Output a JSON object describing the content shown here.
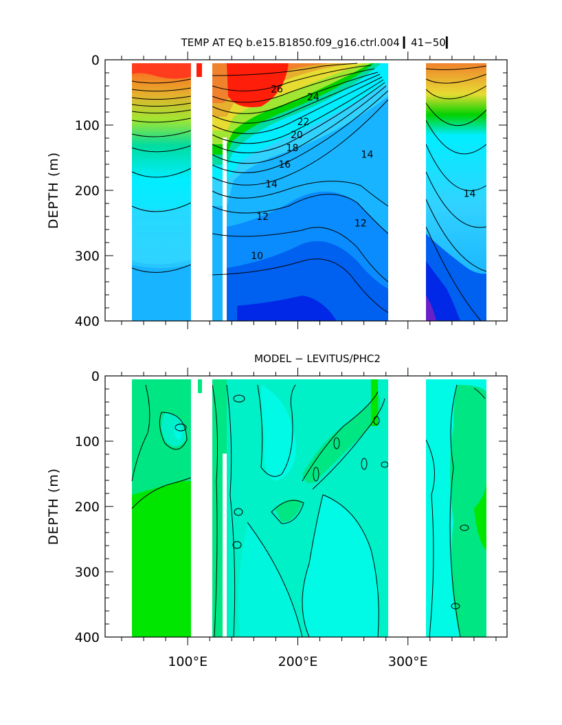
{
  "chart_data": [
    {
      "type": "contour",
      "title": "TEMP AT EQ b.e15.B1850.f09_g16.ctrl.004 ▎41−50▎",
      "xlabel": "",
      "ylabel": "DEPTH (m)",
      "xlim": [
        25,
        390
      ],
      "ylim": [
        400,
        0
      ],
      "x_ticks": [
        100,
        200,
        300
      ],
      "x_tick_labels": [
        "",
        "",
        ""
      ],
      "y_ticks": [
        0,
        100,
        200,
        300,
        400
      ],
      "y_tick_labels": [
        "0",
        "100",
        "200",
        "300",
        "400"
      ],
      "land_gaps_lon": [
        [
          97,
          117
        ],
        [
          126,
          131
        ],
        [
          277,
          314
        ]
      ],
      "data_extent_lon": [
        42,
        369
      ],
      "contour_levels": [
        5,
        6,
        7,
        8,
        9,
        10,
        11,
        12,
        13,
        14,
        15,
        16,
        17,
        18,
        19,
        20,
        21,
        22,
        23,
        24,
        25,
        26,
        27,
        28,
        29
      ],
      "contour_labels": [
        {
          "text": "26",
          "lon": 181,
          "depth": 50
        },
        {
          "text": "24",
          "lon": 214,
          "depth": 62
        },
        {
          "text": "22",
          "lon": 205,
          "depth": 100
        },
        {
          "text": "20",
          "lon": 199,
          "depth": 120
        },
        {
          "text": "18",
          "lon": 195,
          "depth": 140
        },
        {
          "text": "16",
          "lon": 188,
          "depth": 165
        },
        {
          "text": "14",
          "lon": 263,
          "depth": 150
        },
        {
          "text": "14",
          "lon": 176,
          "depth": 195
        },
        {
          "text": "12",
          "lon": 168,
          "depth": 245
        },
        {
          "text": "12",
          "lon": 257,
          "depth": 255
        },
        {
          "text": "14",
          "lon": 356,
          "depth": 210
        },
        {
          "text": "10",
          "lon": 163,
          "depth": 305
        }
      ],
      "colorbands": [
        {
          "value": 9,
          "color": "#0028e6"
        },
        {
          "value": 10,
          "color": "#0060f0"
        },
        {
          "value": 11,
          "color": "#0a8cff"
        },
        {
          "value": 12,
          "color": "#19b4ff"
        },
        {
          "value": 14,
          "color": "#32d2ff"
        },
        {
          "value": 16,
          "color": "#00eeff"
        },
        {
          "value": 18,
          "color": "#00dca0"
        },
        {
          "value": 20,
          "color": "#00d200"
        },
        {
          "value": 22,
          "color": "#a0e632"
        },
        {
          "value": 24,
          "color": "#e6dc32"
        },
        {
          "value": 26,
          "color": "#e6af2d"
        },
        {
          "value": 28,
          "color": "#f0822d"
        },
        {
          "value": 29,
          "color": "#ff3c1e"
        }
      ]
    },
    {
      "type": "contour",
      "title": "MODEL − LEVITUS/PHC2",
      "xlabel": "",
      "ylabel": "DEPTH (m)",
      "xlim": [
        25,
        390
      ],
      "ylim": [
        400,
        0
      ],
      "x_ticks": [
        100,
        200,
        300
      ],
      "x_tick_labels": [
        "100°E",
        "200°E",
        "300°E"
      ],
      "y_ticks": [
        0,
        100,
        200,
        300,
        400
      ],
      "y_tick_labels": [
        "0",
        "100",
        "200",
        "300",
        "400"
      ],
      "land_gaps_lon": [
        [
          97,
          117
        ],
        [
          126,
          131
        ],
        [
          277,
          314
        ]
      ],
      "data_extent_lon": [
        42,
        369
      ],
      "colorbands": [
        {
          "value": -2,
          "color": "#00fae6"
        },
        {
          "value": -1,
          "color": "#00f0c8"
        },
        {
          "value": 0,
          "color": "#00e682"
        },
        {
          "value": 1,
          "color": "#00e600"
        }
      ]
    }
  ]
}
